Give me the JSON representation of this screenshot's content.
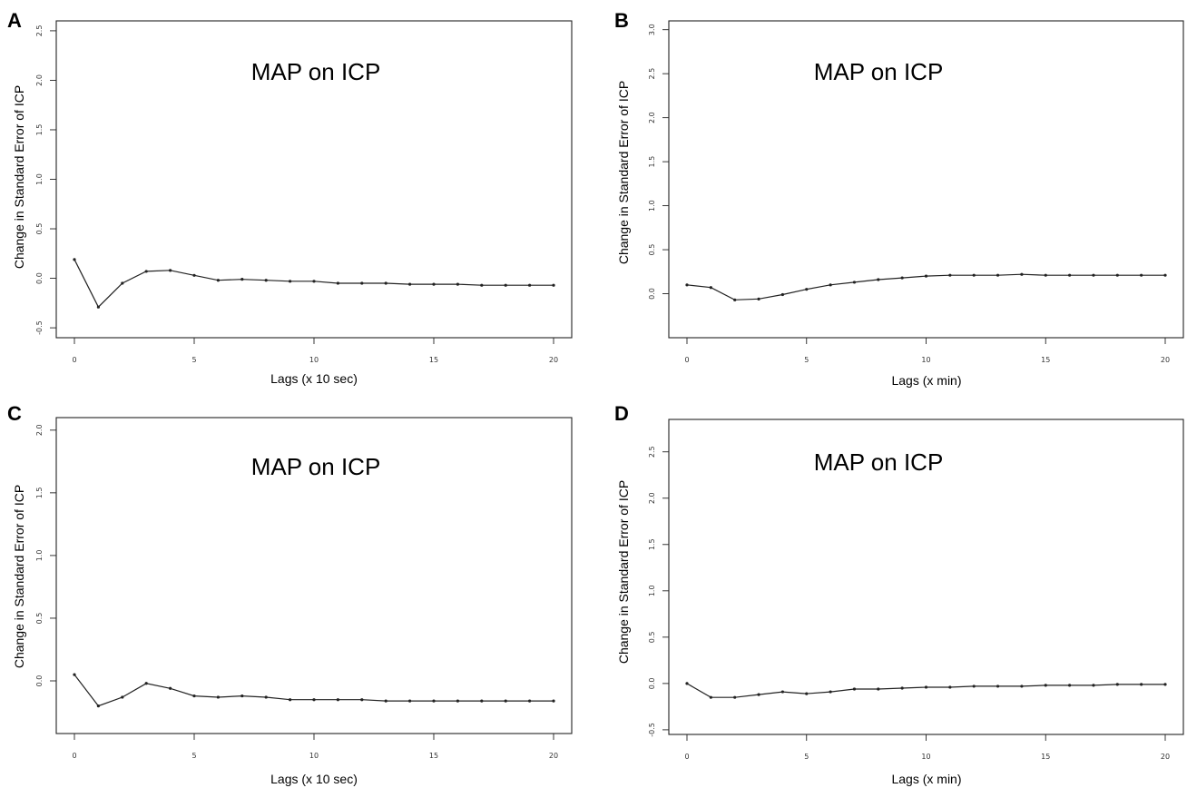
{
  "chart_data": [
    {
      "panel": "A",
      "type": "line",
      "title": "MAP on ICP",
      "xlabel": "Lags (x 10 sec)",
      "ylabel": "Change in Standard Error of ICP",
      "xlim": [
        0,
        20
      ],
      "ylim": [
        -0.6,
        2.6
      ],
      "xticks": [
        0,
        5,
        10,
        15,
        20
      ],
      "yticks": [
        -0.5,
        0.0,
        0.5,
        1.0,
        1.5,
        2.0,
        2.5
      ],
      "ytick_labels": [
        "-0.5",
        "0.0",
        "0.5",
        "1.0",
        "1.5",
        "2.0",
        "2.5"
      ],
      "grid": false,
      "x": [
        0,
        1,
        2,
        3,
        4,
        5,
        6,
        7,
        8,
        9,
        10,
        11,
        12,
        13,
        14,
        15,
        16,
        17,
        18,
        19,
        20
      ],
      "y": [
        0.19,
        -0.29,
        -0.05,
        0.07,
        0.08,
        0.03,
        -0.02,
        -0.01,
        -0.02,
        -0.03,
        -0.03,
        -0.05,
        -0.05,
        -0.05,
        -0.06,
        -0.06,
        -0.06,
        -0.07,
        -0.07,
        -0.07,
        -0.07
      ]
    },
    {
      "panel": "B",
      "type": "line",
      "title": "MAP on ICP",
      "xlabel": "Lags (x min)",
      "ylabel": "Change in Standard Error of ICP",
      "xlim": [
        0,
        20
      ],
      "ylim": [
        -0.5,
        3.1
      ],
      "xticks": [
        0,
        5,
        10,
        15,
        20
      ],
      "yticks": [
        0.0,
        0.5,
        1.0,
        1.5,
        2.0,
        2.5,
        3.0
      ],
      "ytick_labels": [
        "0.0",
        "0.5",
        "1.0",
        "1.5",
        "2.0",
        "2.5",
        "3.0"
      ],
      "grid": false,
      "x": [
        0,
        1,
        2,
        3,
        4,
        5,
        6,
        7,
        8,
        9,
        10,
        11,
        12,
        13,
        14,
        15,
        16,
        17,
        18,
        19,
        20
      ],
      "y": [
        0.1,
        0.07,
        -0.07,
        -0.06,
        -0.01,
        0.05,
        0.1,
        0.13,
        0.16,
        0.18,
        0.2,
        0.21,
        0.21,
        0.21,
        0.22,
        0.21,
        0.21,
        0.21,
        0.21,
        0.21,
        0.21
      ]
    },
    {
      "panel": "C",
      "type": "line",
      "title": "MAP on ICP",
      "xlabel": "Lags (x 10 sec)",
      "ylabel": "Change in Standard Error of ICP",
      "xlim": [
        0,
        20
      ],
      "ylim": [
        -0.42,
        2.1
      ],
      "xticks": [
        0,
        5,
        10,
        15,
        20
      ],
      "yticks": [
        0.0,
        0.5,
        1.0,
        1.5,
        2.0
      ],
      "ytick_labels": [
        "0.0",
        "0.5",
        "1.0",
        "1.5",
        "2.0"
      ],
      "grid": false,
      "x": [
        0,
        1,
        2,
        3,
        4,
        5,
        6,
        7,
        8,
        9,
        10,
        11,
        12,
        13,
        14,
        15,
        16,
        17,
        18,
        19,
        20
      ],
      "y": [
        0.05,
        -0.2,
        -0.13,
        -0.02,
        -0.06,
        -0.12,
        -0.13,
        -0.12,
        -0.13,
        -0.15,
        -0.15,
        -0.15,
        -0.15,
        -0.16,
        -0.16,
        -0.16,
        -0.16,
        -0.16,
        -0.16,
        -0.16,
        -0.16
      ]
    },
    {
      "panel": "D",
      "type": "line",
      "title": "MAP on ICP",
      "xlabel": "Lags (x min)",
      "ylabel": "Change in Standard Error of ICP",
      "xlim": [
        0,
        20
      ],
      "ylim": [
        -0.55,
        2.85
      ],
      "xticks": [
        0,
        5,
        10,
        15,
        20
      ],
      "yticks": [
        -0.5,
        0.0,
        0.5,
        1.0,
        1.5,
        2.0,
        2.5
      ],
      "ytick_labels": [
        "-0.5",
        "0.0",
        "0.5",
        "1.0",
        "1.5",
        "2.0",
        "2.5"
      ],
      "grid": false,
      "x": [
        0,
        1,
        2,
        3,
        4,
        5,
        6,
        7,
        8,
        9,
        10,
        11,
        12,
        13,
        14,
        15,
        16,
        17,
        18,
        19,
        20
      ],
      "y": [
        0.0,
        -0.15,
        -0.15,
        -0.12,
        -0.09,
        -0.11,
        -0.09,
        -0.06,
        -0.06,
        -0.05,
        -0.04,
        -0.04,
        -0.03,
        -0.03,
        -0.03,
        -0.02,
        -0.02,
        -0.02,
        -0.01,
        -0.01,
        -0.01
      ]
    }
  ]
}
